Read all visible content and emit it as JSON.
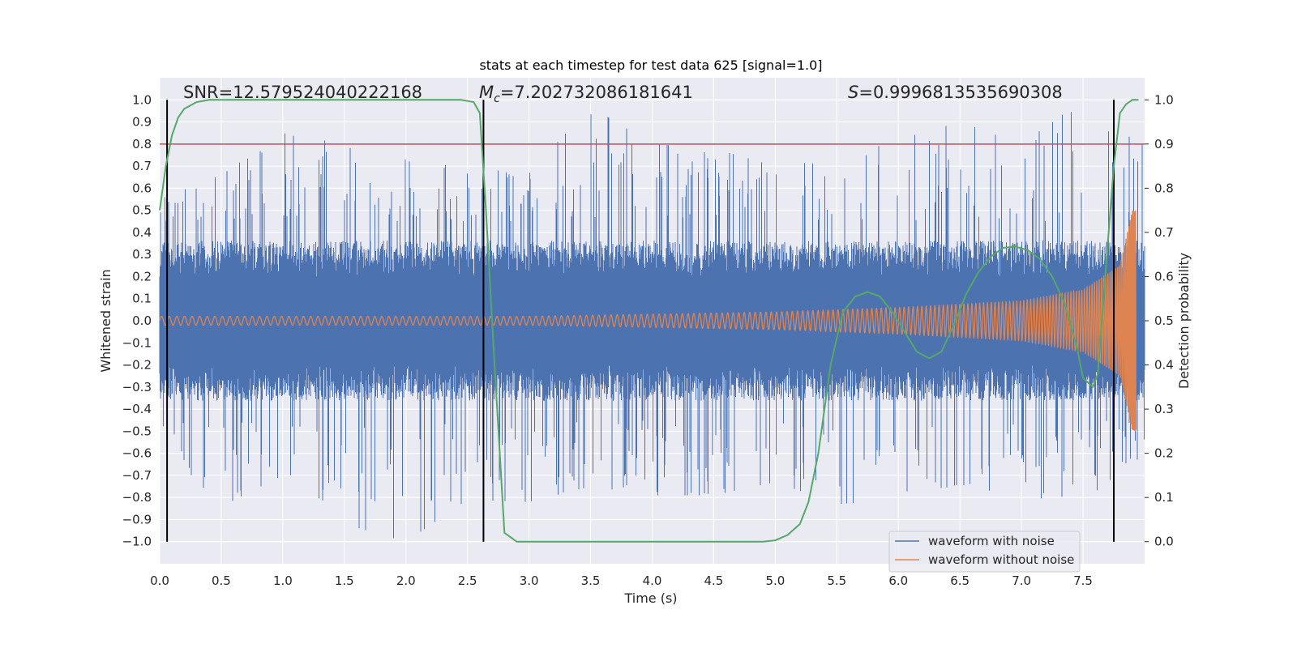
{
  "chart_data": {
    "type": "line",
    "title": "stats at each timestep for test data 625 [signal=1.0]",
    "xlabel": "Time (s)",
    "ylabel": "Whitened strain",
    "y2label": "Detection probability",
    "xlim": [
      0.0,
      8.0
    ],
    "ylim": [
      -1.1,
      1.1
    ],
    "y2lim": [
      -0.05,
      1.05
    ],
    "xticks": [
      0.0,
      0.5,
      1.0,
      1.5,
      2.0,
      2.5,
      3.0,
      3.5,
      4.0,
      4.5,
      5.0,
      5.5,
      6.0,
      6.5,
      7.0,
      7.5
    ],
    "yticks": [
      -1.0,
      -0.9,
      -0.8,
      -0.7,
      -0.6,
      -0.5,
      -0.4,
      -0.3,
      -0.2,
      -0.1,
      0.0,
      0.1,
      0.2,
      0.3,
      0.4,
      0.5,
      0.6,
      0.7,
      0.8,
      0.9,
      1.0
    ],
    "y2ticks": [
      0.0,
      0.1,
      0.2,
      0.3,
      0.4,
      0.5,
      0.6,
      0.7,
      0.8,
      0.9,
      1.0
    ],
    "annotations": {
      "snr": "SNR=12.579524040222168",
      "mc_symbol": "M",
      "mc_sub": "c",
      "mc_value": "=7.202732086181641",
      "s_symbol": "S",
      "s_value": "=0.9996813535690308"
    },
    "threshold": {
      "y2": 0.9,
      "color": "#c44e52"
    },
    "vertical_lines_x": [
      0.06,
      2.63,
      7.75
    ],
    "series": [
      {
        "name": "waveform with noise",
        "color": "#4c72b0",
        "description": "noisy whitened strain, envelope approx",
        "envelope_x": [
          0.0,
          0.5,
          1.0,
          1.5,
          2.0,
          2.5,
          3.0,
          3.5,
          4.0,
          4.5,
          5.0,
          5.5,
          6.0,
          6.5,
          7.0,
          7.5,
          7.95
        ],
        "peaks_up": [
          0.55,
          0.66,
          0.85,
          0.8,
          0.73,
          0.69,
          0.67,
          0.97,
          0.8,
          0.78,
          0.7,
          0.73,
          0.82,
          0.9,
          0.8,
          1.0,
          0.8
        ],
        "peaks_down": [
          -0.55,
          -0.84,
          -0.7,
          -0.92,
          -1.0,
          -0.81,
          -0.82,
          -0.75,
          -0.79,
          -0.79,
          -0.73,
          -0.83,
          -0.81,
          -0.74,
          -0.81,
          -0.79,
          -0.7
        ]
      },
      {
        "name": "waveform without noise",
        "color": "#dd8452",
        "description": "chirp signal, amplitude grows toward merger near 7.9 s",
        "amplitude_points": [
          [
            0.0,
            0.02
          ],
          [
            3.0,
            0.02
          ],
          [
            5.0,
            0.04
          ],
          [
            6.0,
            0.06
          ],
          [
            7.0,
            0.09
          ],
          [
            7.5,
            0.14
          ],
          [
            7.8,
            0.25
          ],
          [
            7.9,
            0.5
          ]
        ]
      },
      {
        "name": "Detection probability",
        "color": "#55a868",
        "axis": "y2",
        "x": [
          0.0,
          0.05,
          0.1,
          0.15,
          0.2,
          0.3,
          0.4,
          0.6,
          1.0,
          1.5,
          2.0,
          2.3,
          2.45,
          2.55,
          2.6,
          2.65,
          2.72,
          2.8,
          2.9,
          3.0,
          3.5,
          4.0,
          4.5,
          4.9,
          5.0,
          5.1,
          5.2,
          5.27,
          5.35,
          5.45,
          5.55,
          5.65,
          5.75,
          5.85,
          5.95,
          6.05,
          6.15,
          6.25,
          6.35,
          6.45,
          6.55,
          6.65,
          6.75,
          6.85,
          6.95,
          7.05,
          7.15,
          7.25,
          7.35,
          7.45,
          7.5,
          7.58,
          7.62,
          7.68,
          7.75,
          7.8,
          7.85,
          7.9,
          7.95
        ],
        "y": [
          0.75,
          0.85,
          0.92,
          0.96,
          0.98,
          0.995,
          1.0,
          1.0,
          1.0,
          1.0,
          1.0,
          1.0,
          1.0,
          0.995,
          0.97,
          0.75,
          0.4,
          0.02,
          0.0,
          0.0,
          0.0,
          0.0,
          0.0,
          0.0,
          0.003,
          0.015,
          0.04,
          0.09,
          0.2,
          0.4,
          0.52,
          0.555,
          0.565,
          0.555,
          0.52,
          0.475,
          0.43,
          0.415,
          0.43,
          0.49,
          0.56,
          0.61,
          0.645,
          0.665,
          0.668,
          0.66,
          0.64,
          0.6,
          0.54,
          0.44,
          0.37,
          0.35,
          0.38,
          0.6,
          0.85,
          0.97,
          0.99,
          1.0,
          1.0
        ]
      }
    ],
    "legend": {
      "placement": "lower-right"
    }
  }
}
